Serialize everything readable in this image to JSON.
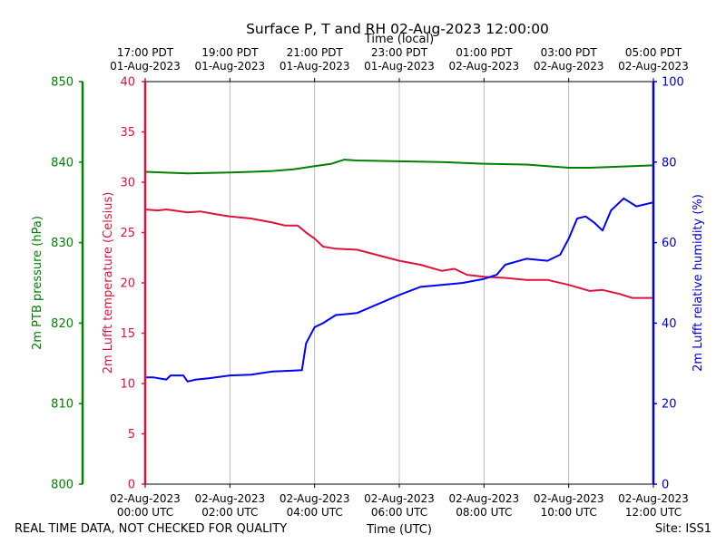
{
  "chart_data": {
    "type": "line",
    "title": "Surface P, T and RH 02-Aug-2023 12:00:00",
    "top_axis_label": "Time (local)",
    "bottom_axis_label": "Time (UTC)",
    "x_hours_range": [
      0,
      12
    ],
    "top_ticks": [
      {
        "h": 0,
        "time": "17:00 PDT",
        "date": "01-Aug-2023"
      },
      {
        "h": 2,
        "time": "19:00 PDT",
        "date": "01-Aug-2023"
      },
      {
        "h": 4,
        "time": "21:00 PDT",
        "date": "01-Aug-2023"
      },
      {
        "h": 6,
        "time": "23:00 PDT",
        "date": "01-Aug-2023"
      },
      {
        "h": 8,
        "time": "01:00 PDT",
        "date": "02-Aug-2023"
      },
      {
        "h": 10,
        "time": "03:00 PDT",
        "date": "02-Aug-2023"
      },
      {
        "h": 12,
        "time": "05:00 PDT",
        "date": "02-Aug-2023"
      }
    ],
    "bottom_ticks": [
      {
        "h": 0,
        "date": "02-Aug-2023",
        "time": "00:00 UTC"
      },
      {
        "h": 2,
        "date": "02-Aug-2023",
        "time": "02:00 UTC"
      },
      {
        "h": 4,
        "date": "02-Aug-2023",
        "time": "04:00 UTC"
      },
      {
        "h": 6,
        "date": "02-Aug-2023",
        "time": "06:00 UTC"
      },
      {
        "h": 8,
        "date": "02-Aug-2023",
        "time": "08:00 UTC"
      },
      {
        "h": 10,
        "date": "02-Aug-2023",
        "time": "10:00 UTC"
      },
      {
        "h": 12,
        "date": "02-Aug-2023",
        "time": "12:00 UTC"
      }
    ],
    "axes": {
      "pressure": {
        "label": "2m PTB pressure (hPa)",
        "range": [
          800,
          850
        ],
        "ticks": [
          800,
          810,
          820,
          830,
          840,
          850
        ],
        "color": "#008000"
      },
      "temperature": {
        "label": "2m Lufft temperature (Celsius)",
        "range": [
          0,
          40
        ],
        "ticks": [
          0,
          5,
          10,
          15,
          20,
          25,
          30,
          35,
          40
        ],
        "color": "#dc143c"
      },
      "humidity": {
        "label": "2m Lufft relative humidity (%)",
        "range": [
          0,
          100
        ],
        "ticks": [
          0,
          20,
          40,
          60,
          80,
          100
        ],
        "color": "#0000cd"
      }
    },
    "series": [
      {
        "name": "2m PTB pressure",
        "axis": "pressure",
        "color": "#008000",
        "x": [
          0,
          1,
          2,
          2.5,
          3,
          3.5,
          4,
          4.4,
          4.7,
          5,
          6,
          7,
          8,
          9,
          10,
          10.5,
          11,
          12
        ],
        "y": [
          838.8,
          838.6,
          838.7,
          838.8,
          838.9,
          839.1,
          839.5,
          839.8,
          840.3,
          840.2,
          840.1,
          840.0,
          839.8,
          839.7,
          839.3,
          839.3,
          839.4,
          839.6
        ]
      },
      {
        "name": "2m Lufft temperature",
        "axis": "temperature",
        "color": "#dc143c",
        "x": [
          0,
          0.3,
          0.5,
          1,
          1.3,
          1.7,
          2,
          2.5,
          3,
          3.3,
          3.6,
          3.8,
          4,
          4.2,
          4.5,
          5,
          6,
          6.5,
          7,
          7.3,
          7.6,
          8,
          8.5,
          9,
          9.5,
          10,
          10.5,
          10.8,
          11.2,
          11.5,
          12
        ],
        "y": [
          27.3,
          27.2,
          27.3,
          27.0,
          27.1,
          26.8,
          26.6,
          26.4,
          26.0,
          25.7,
          25.7,
          25.0,
          24.4,
          23.6,
          23.4,
          23.3,
          22.2,
          21.8,
          21.2,
          21.4,
          20.8,
          20.6,
          20.5,
          20.3,
          20.3,
          19.8,
          19.2,
          19.3,
          18.9,
          18.5,
          18.5
        ]
      },
      {
        "name": "2m Lufft relative humidity",
        "axis": "humidity",
        "color": "#0000ff",
        "x": [
          0,
          0.2,
          0.5,
          0.6,
          0.9,
          1.0,
          1.2,
          1.5,
          2,
          2.5,
          3,
          3.5,
          3.7,
          3.8,
          4.0,
          4.2,
          4.5,
          5,
          6,
          6.5,
          7,
          7.5,
          8,
          8.3,
          8.5,
          9,
          9.5,
          9.8,
          10.0,
          10.2,
          10.4,
          10.6,
          10.8,
          11.0,
          11.3,
          11.6,
          12
        ],
        "y": [
          26.5,
          26.5,
          26,
          27,
          27,
          25.5,
          26,
          26.3,
          27,
          27.2,
          28.0,
          28.2,
          28.3,
          35,
          39,
          40,
          42,
          42.5,
          47,
          49,
          49.5,
          50,
          51,
          52,
          54.5,
          56,
          55.5,
          57,
          61,
          66,
          66.5,
          65,
          63,
          68,
          71,
          69,
          70
        ]
      }
    ]
  },
  "footer": {
    "left": "REAL TIME DATA, NOT CHECKED FOR QUALITY",
    "right": "Site: ISS1"
  }
}
